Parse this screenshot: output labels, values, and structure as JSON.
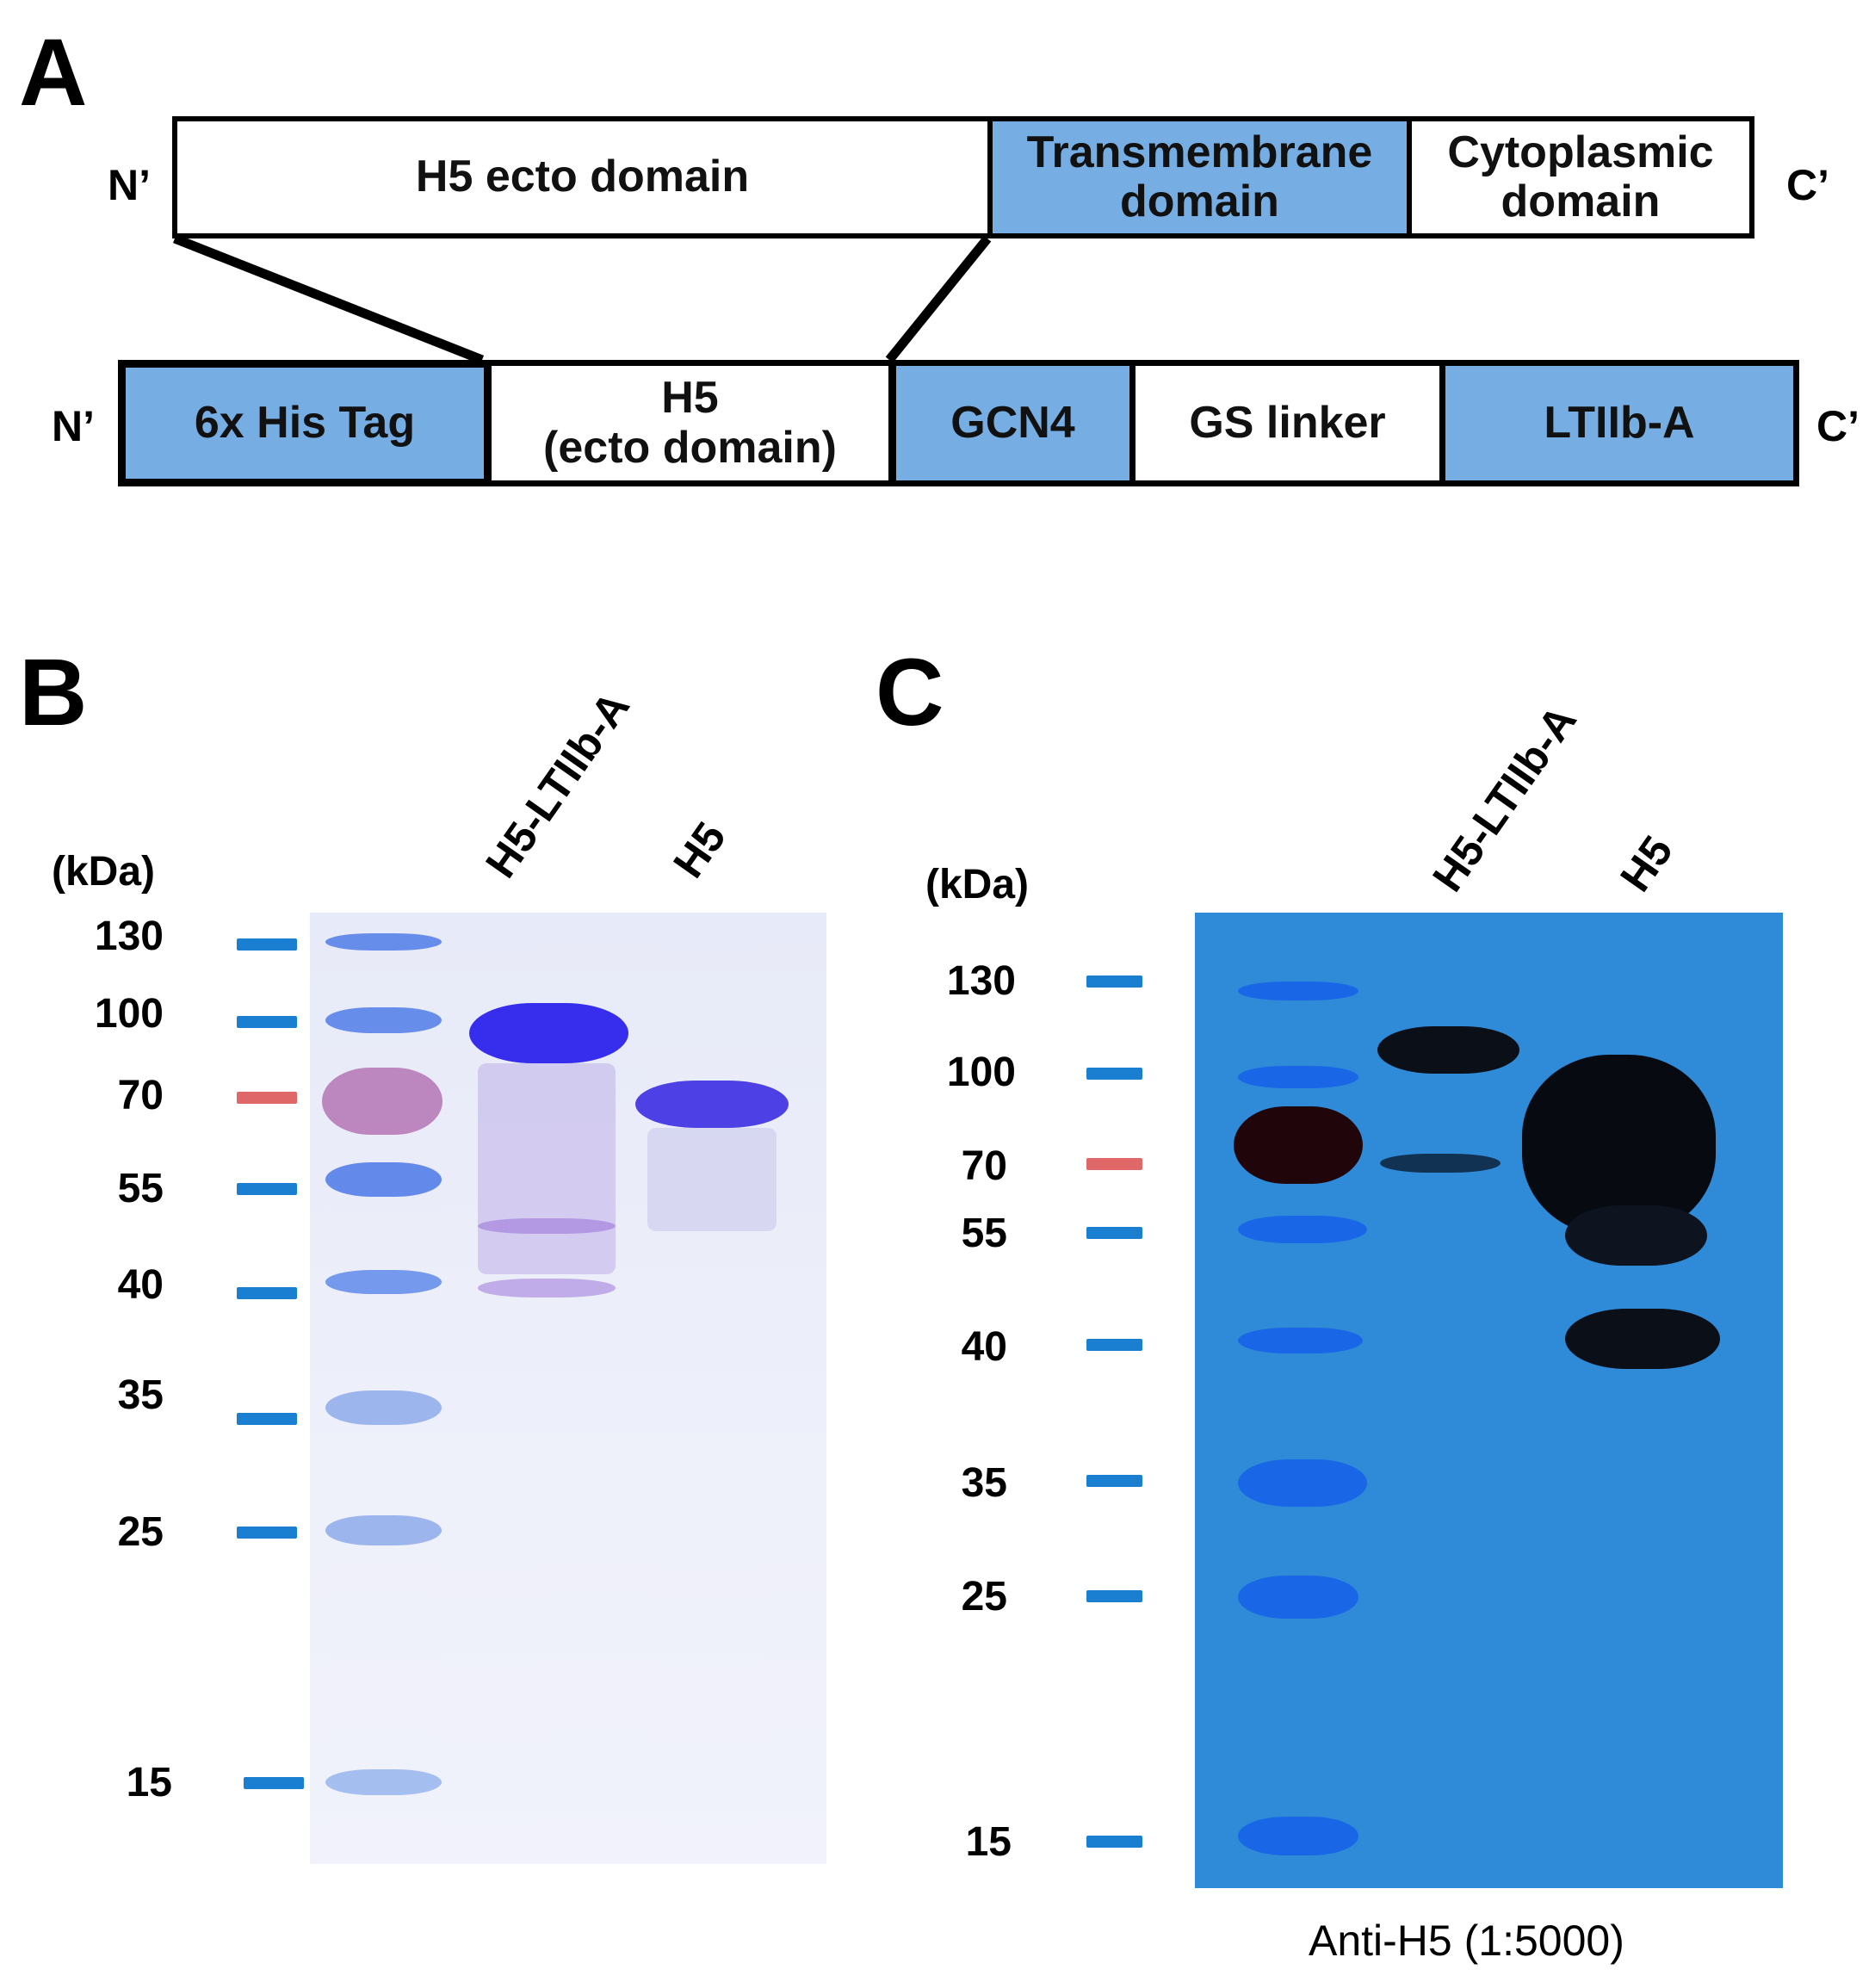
{
  "panels": {
    "a_letter": "A",
    "b_letter": "B",
    "c_letter": "C"
  },
  "construct_a": {
    "n_term": "N’",
    "c_term": "C’",
    "top_row": [
      {
        "label": "H5 ecto domain",
        "fill": "white"
      },
      {
        "label": "Transmembrane\ndomain",
        "fill": "blue"
      },
      {
        "label": "Cytoplasmic\ndomain",
        "fill": "white"
      }
    ],
    "bottom_row": [
      {
        "label": "6x His Tag",
        "fill": "blue"
      },
      {
        "label": "H5\n(ecto domain)",
        "fill": "white"
      },
      {
        "label": "GCN4",
        "fill": "blue"
      },
      {
        "label": "GS linker",
        "fill": "white"
      },
      {
        "label": "LTIIb-A",
        "fill": "blue"
      }
    ]
  },
  "colors": {
    "domain_blue": "#76aee3",
    "marker_blue": "#1b7fd1",
    "marker_red": "#e06767",
    "blot_background": "#2f8ad8"
  },
  "gel_b": {
    "unit_label": "(kDa)",
    "lane_labels": [
      "H5-LTIIb-A",
      "H5"
    ],
    "markers": [
      {
        "value": "130",
        "color": "blue"
      },
      {
        "value": "100",
        "color": "blue"
      },
      {
        "value": "70",
        "color": "red"
      },
      {
        "value": "55",
        "color": "blue"
      },
      {
        "value": "40",
        "color": "blue"
      },
      {
        "value": "35",
        "color": "blue"
      },
      {
        "value": "25",
        "color": "blue"
      },
      {
        "value": "15",
        "color": "blue"
      }
    ]
  },
  "blot_c": {
    "unit_label": "(kDa)",
    "lane_labels": [
      "H5-LTIIb-A",
      "H5"
    ],
    "markers": [
      {
        "value": "130",
        "color": "blue"
      },
      {
        "value": "100",
        "color": "blue"
      },
      {
        "value": "70",
        "color": "red"
      },
      {
        "value": "55",
        "color": "blue"
      },
      {
        "value": "40",
        "color": "blue"
      },
      {
        "value": "35",
        "color": "blue"
      },
      {
        "value": "25",
        "color": "blue"
      },
      {
        "value": "15",
        "color": "blue"
      }
    ],
    "caption": "Anti-H5 (1:5000)"
  }
}
